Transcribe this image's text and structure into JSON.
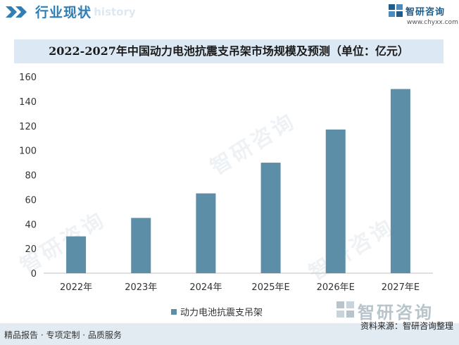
{
  "header": {
    "section_title": "行业现状",
    "ghost_text": "ent history",
    "brand_name": "智研咨询",
    "brand_url": "www.chyxx.com"
  },
  "watermark": {
    "brand": "智研咨询"
  },
  "footer": {
    "services": "精品报告 · 专项定制 · 品质服务",
    "source": "资料来源：智研咨询整理",
    "brand_name": "智研咨询"
  },
  "colors": {
    "bar": "#5d8ea8",
    "accent": "#2f7fb5",
    "title_bg": "#dce8f3"
  },
  "chart_data": {
    "type": "bar",
    "title": "2022-2027年中国动力电池抗震支吊架市场规模及预测（单位：亿元）",
    "categories": [
      "2022年",
      "2023年",
      "2024年",
      "2025年E",
      "2026年E",
      "2027年E"
    ],
    "series": [
      {
        "name": "动力电池抗震支吊架",
        "values": [
          30,
          45,
          65,
          90,
          117,
          150
        ]
      }
    ],
    "ylim": [
      0,
      160
    ],
    "yticks": [
      "0",
      "20",
      "40",
      "60",
      "80",
      "100",
      "120",
      "140",
      "160"
    ],
    "xlabel": "",
    "ylabel": "",
    "legend_position": "bottom-center",
    "grid": false
  }
}
